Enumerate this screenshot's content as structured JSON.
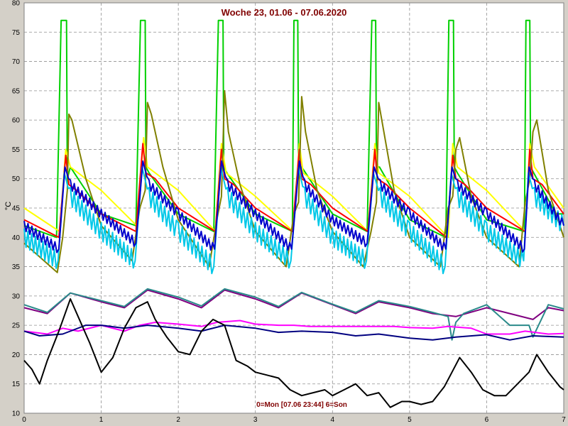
{
  "chart_data": {
    "type": "line",
    "title": "Woche 23, 01.06 - 07.06.2020",
    "caption": "0=Mon [07.06 23:44] 6=Son",
    "ylabel": "°C",
    "xlim": [
      0,
      7
    ],
    "ylim": [
      10,
      80
    ],
    "xticks": [
      "0",
      "1",
      "2",
      "3",
      "4",
      "5",
      "6",
      "7"
    ],
    "yticks": [
      "10",
      "15",
      "20",
      "25",
      "30",
      "35",
      "40",
      "45",
      "50",
      "55",
      "60",
      "65",
      "70",
      "75",
      "80"
    ],
    "grid": true,
    "colors": {
      "background": "#ffffff",
      "frame": "#d4d0c8",
      "grid": "#909090"
    },
    "series": [
      {
        "color": "#00d000",
        "x": [
          0,
          0.42,
          0.48,
          0.49,
          0.55,
          0.56,
          0.6,
          1,
          1.45,
          1.51,
          1.52,
          1.57,
          1.58,
          1.62,
          2,
          2.46,
          2.52,
          2.53,
          2.58,
          2.59,
          2.63,
          3,
          3.48,
          3.5,
          3.51,
          3.55,
          3.56,
          3.6,
          4,
          4.45,
          4.51,
          4.52,
          4.56,
          4.57,
          4.61,
          5,
          5.47,
          5.51,
          5.52,
          5.57,
          5.58,
          5.62,
          6,
          6.49,
          6.51,
          6.52,
          6.56,
          6.57,
          6.61,
          6.9,
          7
        ],
        "y": [
          42,
          40,
          77,
          77,
          77,
          50,
          52,
          44,
          42,
          77,
          77,
          77,
          52,
          51,
          44,
          41,
          77,
          77,
          77,
          52,
          51,
          44,
          41,
          77,
          77,
          77,
          52,
          52,
          44,
          41,
          77,
          77,
          77,
          52,
          52,
          43,
          40,
          77,
          77,
          77,
          52,
          51,
          43,
          41,
          77,
          77,
          77,
          52,
          51,
          44,
          44
        ]
      },
      {
        "color": "#ffff00",
        "x": [
          0,
          0.46,
          0.54,
          0.6,
          1,
          1.46,
          1.55,
          1.6,
          2,
          2.48,
          2.56,
          2.62,
          3,
          3.49,
          3.57,
          3.62,
          4,
          4.46,
          4.55,
          4.6,
          5,
          5.5,
          5.56,
          5.62,
          6,
          6.5,
          6.56,
          6.62,
          7
        ],
        "y": [
          45,
          41,
          55,
          52,
          48,
          42,
          57,
          52,
          48,
          41,
          56,
          51,
          47,
          41,
          56,
          51,
          47,
          41,
          56,
          51,
          47,
          40,
          56,
          52,
          48,
          41,
          56,
          52,
          45
        ]
      },
      {
        "color": "#ff0000",
        "x": [
          0,
          0.45,
          0.54,
          0.58,
          0.68,
          1,
          1.45,
          1.54,
          1.58,
          1.7,
          2,
          2.48,
          2.56,
          2.6,
          2.72,
          3,
          3.48,
          3.57,
          3.6,
          3.72,
          4,
          4.46,
          4.55,
          4.58,
          4.7,
          5,
          5.48,
          5.56,
          5.6,
          5.72,
          6,
          6.5,
          6.56,
          6.6,
          6.72,
          7
        ],
        "y": [
          43,
          40,
          54,
          49,
          48,
          44,
          41,
          56,
          51,
          50,
          45,
          41,
          55,
          50,
          49,
          45,
          41,
          55,
          50,
          49,
          45,
          41,
          55,
          50,
          49,
          45,
          40,
          54,
          50,
          49,
          45,
          41,
          55,
          50,
          49,
          44
        ]
      },
      {
        "color": "#808000",
        "x": [
          0,
          0.43,
          0.5,
          0.56,
          0.58,
          0.62,
          0.8,
          1,
          1.4,
          1.5,
          1.57,
          1.6,
          1.65,
          1.8,
          2,
          2.4,
          2.5,
          2.56,
          2.6,
          2.65,
          2.8,
          3,
          3.4,
          3.5,
          3.56,
          3.6,
          3.65,
          3.8,
          4,
          4.4,
          4.5,
          4.57,
          4.6,
          4.68,
          4.8,
          5,
          5.4,
          5.5,
          5.56,
          5.6,
          5.65,
          5.8,
          6,
          6.42,
          6.5,
          6.56,
          6.6,
          6.65,
          6.8,
          7
        ],
        "y": [
          39,
          34,
          40,
          48,
          61,
          60,
          50,
          42,
          36,
          45,
          48,
          63,
          61,
          52,
          43,
          35,
          43,
          47,
          65,
          58,
          49,
          41,
          35,
          44,
          46,
          64,
          58,
          48,
          41,
          35,
          41,
          46,
          63,
          57,
          48,
          40,
          35,
          45,
          47,
          55,
          57,
          47,
          40,
          35,
          46,
          50,
          58,
          60,
          48,
          40
        ]
      },
      {
        "color": "#00c8e8",
        "noise": 1.5,
        "period": 0.05,
        "x": [
          0,
          0.44,
          0.52,
          0.6,
          1,
          1.44,
          1.53,
          1.62,
          2,
          2.46,
          2.55,
          2.64,
          3,
          3.46,
          3.56,
          3.64,
          4,
          4.44,
          4.53,
          4.62,
          5,
          5.46,
          5.54,
          5.62,
          6,
          6.48,
          6.54,
          6.62,
          7
        ],
        "y": [
          40,
          36,
          51,
          47,
          41,
          36,
          52,
          47,
          41,
          35,
          52,
          47,
          41,
          36,
          52,
          47,
          40,
          36,
          51,
          47,
          41,
          35,
          51,
          47,
          41,
          36,
          51,
          47,
          42
        ]
      },
      {
        "color": "#0000cc",
        "noise": 0.8,
        "period": 0.05,
        "x": [
          0,
          0.45,
          0.53,
          0.6,
          1,
          1.45,
          1.54,
          1.62,
          2,
          2.47,
          2.56,
          2.64,
          3,
          3.47,
          3.57,
          3.64,
          4,
          4.45,
          4.54,
          4.62,
          5,
          5.47,
          5.55,
          5.62,
          6,
          6.49,
          6.55,
          6.62,
          7
        ],
        "y": [
          42,
          38,
          52,
          49,
          44,
          39,
          53,
          49,
          44,
          38,
          53,
          49,
          44,
          38,
          53,
          49,
          43,
          39,
          52,
          49,
          44,
          38,
          52,
          49,
          44,
          38,
          52,
          49,
          42
        ]
      },
      {
        "color": "#800080",
        "x": [
          0,
          0.3,
          0.6,
          1,
          1.3,
          1.6,
          2,
          2.3,
          2.6,
          3,
          3.3,
          3.6,
          4,
          4.3,
          4.6,
          5,
          5.3,
          5.6,
          6,
          6.3,
          6.6,
          6.8,
          7
        ],
        "y": [
          28,
          27,
          30.5,
          29,
          28,
          31,
          29.5,
          28,
          31,
          29.5,
          28,
          30.5,
          28.5,
          27,
          29,
          28,
          27,
          26.5,
          28,
          27,
          26,
          28,
          27.5
        ]
      },
      {
        "color": "#2a8a8a",
        "x": [
          0,
          0.3,
          0.6,
          1,
          1.3,
          1.6,
          2,
          2.3,
          2.6,
          3,
          3.3,
          3.6,
          4,
          4.3,
          4.6,
          5,
          5.3,
          5.5,
          5.55,
          5.6,
          5.7,
          6,
          6.3,
          6.55,
          6.6,
          6.8,
          7
        ],
        "y": [
          28.5,
          27.2,
          30.5,
          29.2,
          28.2,
          31.2,
          29.8,
          28.3,
          31.2,
          29.8,
          28.2,
          30.6,
          28.6,
          27.2,
          29.2,
          28.2,
          27.2,
          26.5,
          22.5,
          25.5,
          27,
          28.5,
          25,
          25,
          23,
          28.5,
          27.8
        ]
      },
      {
        "color": "#ff00ff",
        "x": [
          0,
          0.3,
          0.5,
          0.7,
          1,
          1.3,
          1.5,
          1.7,
          2,
          2.3,
          2.5,
          2.8,
          3,
          3.3,
          3.5,
          3.7,
          4,
          4.3,
          4.5,
          4.8,
          5,
          5.3,
          5.5,
          5.8,
          6,
          6.3,
          6.5,
          6.8,
          7
        ],
        "y": [
          24,
          23.5,
          24.5,
          24,
          25,
          24,
          25,
          25.5,
          25.2,
          24.8,
          25.5,
          25.8,
          25.2,
          25,
          25,
          24.8,
          24.8,
          24.8,
          24.8,
          24.8,
          24.6,
          24.5,
          24.8,
          24.5,
          23.5,
          23.5,
          24,
          23.5,
          23.6
        ]
      },
      {
        "color": "#000080",
        "x": [
          0,
          0.2,
          0.5,
          0.8,
          1,
          1.3,
          1.6,
          2,
          2.3,
          2.6,
          3,
          3.3,
          3.6,
          4,
          4.3,
          4.6,
          5,
          5.3,
          5.6,
          6,
          6.3,
          6.6,
          7
        ],
        "y": [
          24,
          23.2,
          23.5,
          25,
          25,
          24.5,
          25,
          24.5,
          24,
          25,
          24.5,
          23.8,
          24,
          23.8,
          23.2,
          23.5,
          22.8,
          22.5,
          23,
          23.4,
          22.5,
          23.2,
          23
        ]
      },
      {
        "color": "#000000",
        "x": [
          0,
          0.1,
          0.2,
          0.3,
          0.45,
          0.6,
          0.7,
          0.85,
          1,
          1.15,
          1.3,
          1.45,
          1.6,
          1.7,
          1.85,
          2,
          2.15,
          2.3,
          2.45,
          2.6,
          2.75,
          2.9,
          3,
          3.15,
          3.3,
          3.45,
          3.6,
          3.75,
          3.9,
          4,
          4.15,
          4.3,
          4.45,
          4.6,
          4.75,
          4.9,
          5,
          5.15,
          5.3,
          5.45,
          5.55,
          5.65,
          5.8,
          5.95,
          6.1,
          6.25,
          6.4,
          6.55,
          6.65,
          6.8,
          6.95,
          7
        ],
        "y": [
          19,
          17.5,
          15,
          19,
          24,
          29.5,
          26.5,
          22,
          17,
          19.5,
          24.5,
          28,
          29,
          26,
          23,
          20.5,
          20,
          24,
          26,
          25,
          19,
          18,
          17,
          16.5,
          16,
          14,
          13,
          13.5,
          14,
          13,
          14,
          15,
          13,
          13.5,
          11,
          12,
          12,
          11.5,
          12,
          14.5,
          17,
          19.5,
          17,
          14,
          13,
          13,
          15,
          17,
          20,
          17,
          14.5,
          14
        ]
      }
    ]
  }
}
